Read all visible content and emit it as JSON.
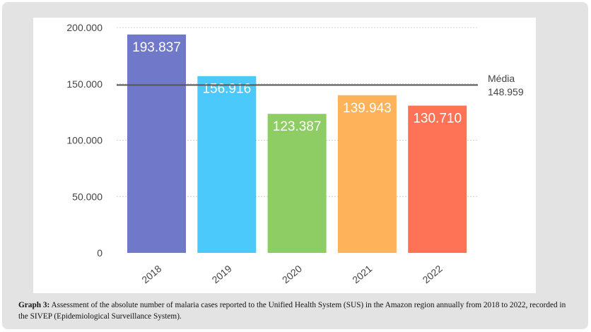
{
  "chart_data": {
    "type": "bar",
    "categories": [
      "2018",
      "2019",
      "2020",
      "2021",
      "2022"
    ],
    "values": [
      193837,
      156916,
      123387,
      139943,
      130710
    ],
    "value_labels": [
      "193.837",
      "156.916",
      "123.387",
      "139.943",
      "130.710"
    ],
    "colors": [
      "#6f78c9",
      "#4cc9fb",
      "#8dcd64",
      "#feb35a",
      "#fe7355"
    ],
    "ylim": [
      0,
      200000
    ],
    "yticks": [
      0,
      50000,
      100000,
      150000,
      200000
    ],
    "ytick_labels": [
      "0",
      "50.000",
      "100.000",
      "150.000",
      "200.000"
    ],
    "grid": true,
    "mean": {
      "value": 148959,
      "label": "Média",
      "value_label": "148.959"
    },
    "title": "",
    "xlabel": "",
    "ylabel": ""
  },
  "caption": {
    "label": "Graph 3:",
    "text": " Assessment of the absolute number of malaria cases reported to the Unified Health System (SUS) in the Amazon region annually from 2018 to 2022, recorded in the SIVEP (Epidemiological Surveillance System)."
  }
}
